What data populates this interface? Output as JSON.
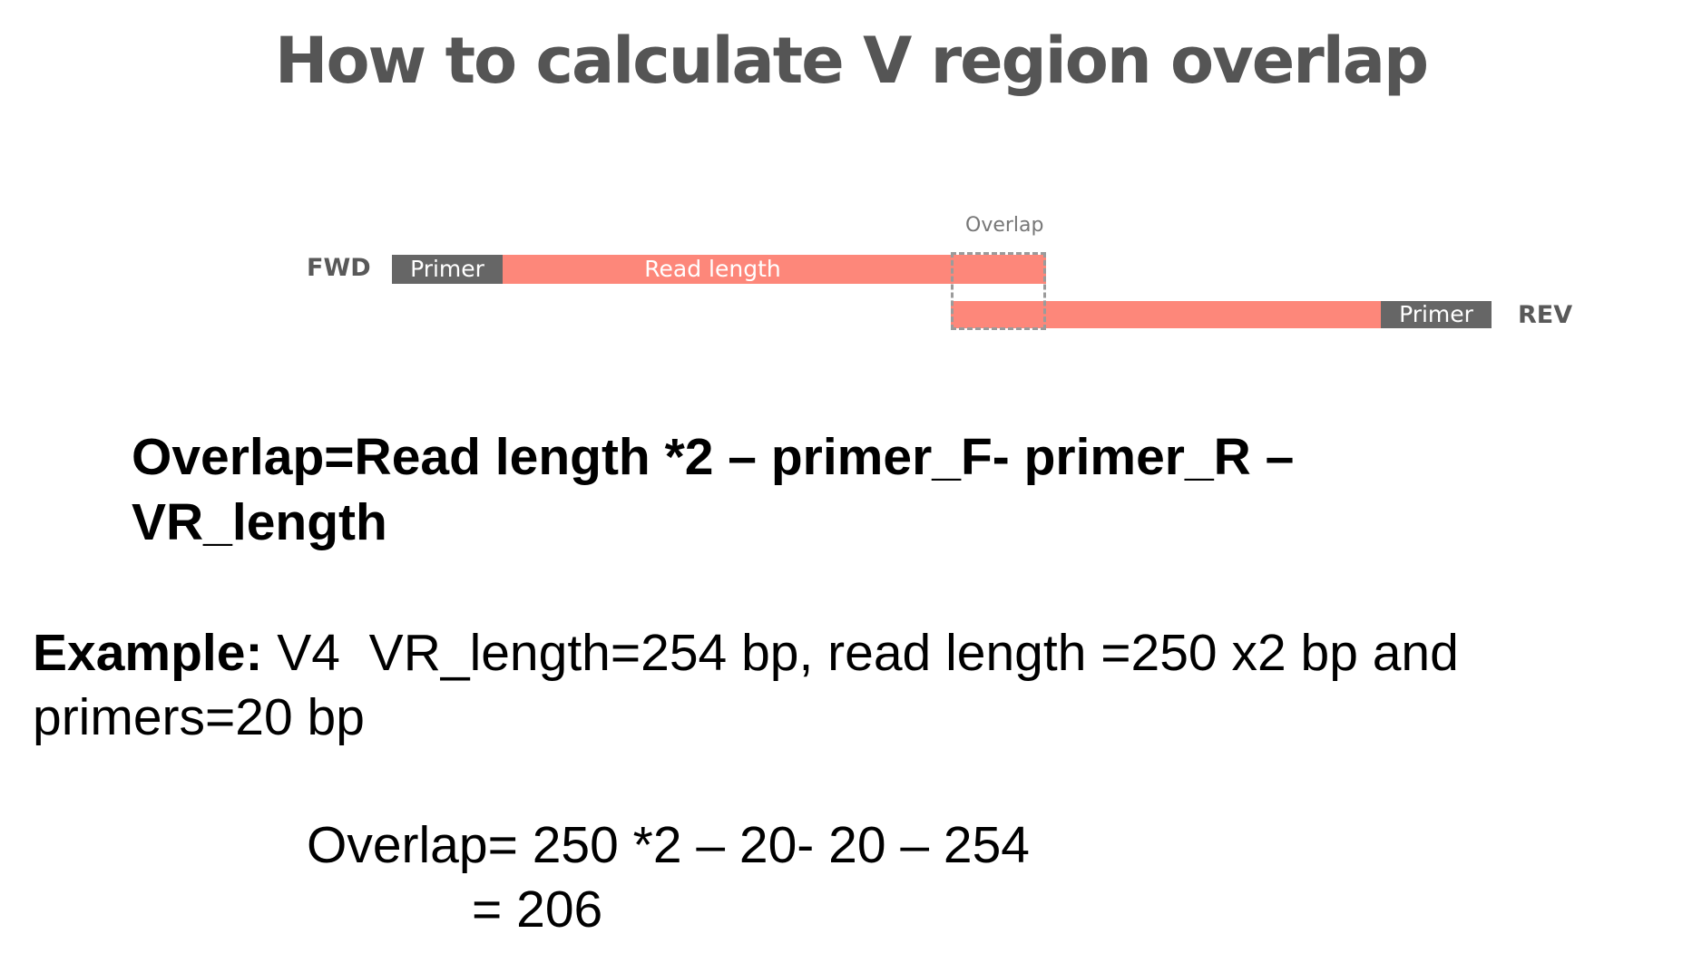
{
  "title": "How to calculate V region overlap",
  "diagram": {
    "fwd_label": "FWD",
    "rev_label": "REV",
    "fwd_primer_label": "Primer",
    "read_length_label": "Read length",
    "rev_primer_label": "Primer",
    "overlap_label": "Overlap",
    "colors": {
      "primer": "#666666",
      "read": "#fd877a",
      "overlap_border": "#9b9b9b"
    }
  },
  "formula": {
    "line1": "Overlap=Read length *2 – primer_F- primer_R –",
    "line2": "VR_length"
  },
  "example": {
    "prefix": "Example:",
    "line1_rest": " V4  VR_length=254 bp, read length =250 x2 bp and",
    "line2": "primers=20 bp"
  },
  "calculation": {
    "line1": "Overlap= 250 *2 – 20- 20 – 254",
    "line2": "=  206"
  }
}
